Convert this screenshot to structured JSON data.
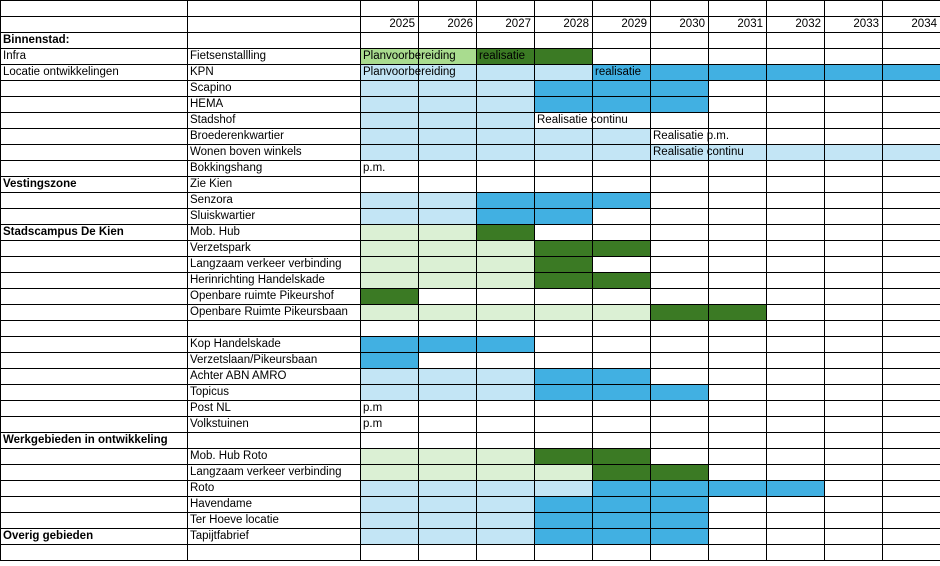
{
  "colors": {
    "P": "#a9dc8f",
    "p": "#dbf0d4",
    "D": "#3b7a24",
    "l": "#c3e5f5",
    "B": "#41b0e2"
  },
  "legend_codes": {
    "P": "planvoorbereiding (bright green)",
    "p": "planvoorbereiding (pale green)",
    "D": "realisatie (dark green)",
    "l": "planvoorbereiding (light blue)",
    "B": "realisatie (blue)"
  },
  "chart_data": {
    "type": "table",
    "years": [
      "2025",
      "2026",
      "2027",
      "2028",
      "2029",
      "2030",
      "2031",
      "2032",
      "2033",
      "2034"
    ],
    "rows": [
      {
        "a": "",
        "b": "",
        "fill": "..........",
        "labels": {}
      },
      {
        "a": "",
        "b": "",
        "fill": "..........",
        "labels": {},
        "years": true
      },
      {
        "a": "Binnenstad:",
        "b": "",
        "fill": "..........",
        "labels": {},
        "bold": true
      },
      {
        "a": "Infra",
        "b": "Fietsenstallling",
        "fill": "PPDD......",
        "labels": {
          "0": "Planvoorbereiding",
          "2": "realisatie"
        }
      },
      {
        "a": "Locatie ontwikkelingen",
        "b": "KPN",
        "fill": "llllBBBBBB",
        "labels": {
          "0": "Planvoorbereiding",
          "4": "realisatie"
        }
      },
      {
        "a": "",
        "b": "Scapino",
        "fill": "lllBBB....",
        "labels": {}
      },
      {
        "a": "",
        "b": "HEMA",
        "fill": "lllBBB....",
        "labels": {}
      },
      {
        "a": "",
        "b": "Stadshof",
        "fill": "lll.......",
        "labels": {
          "3": "Realisatie continu"
        }
      },
      {
        "a": "",
        "b": "Broederenkwartier",
        "fill": "lllll.....",
        "labels": {
          "5": "Realisatie p.m."
        }
      },
      {
        "a": "",
        "b": "Wonen boven winkels",
        "fill": "llllllllll",
        "labels": {
          "5": "Realisatie continu"
        }
      },
      {
        "a": "",
        "b": "Bokkingshang",
        "fill": "..........",
        "labels": {
          "0": "p.m."
        }
      },
      {
        "a": "Vestingszone",
        "b": "Zie Kien",
        "fill": "..........",
        "labels": {},
        "bold": true
      },
      {
        "a": "",
        "b": "Senzora",
        "fill": "llBBB.....",
        "labels": {}
      },
      {
        "a": "",
        "b": "Sluiskwartier",
        "fill": "llBB......",
        "labels": {}
      },
      {
        "a": "Stadscampus De Kien",
        "b": "Mob. Hub",
        "fill": "ppD.......",
        "labels": {},
        "bold": true
      },
      {
        "a": "",
        "b": "Verzetspark",
        "fill": "pppDD.....",
        "labels": {}
      },
      {
        "a": "",
        "b": "Langzaam verkeer verbinding",
        "fill": "pppD......",
        "labels": {}
      },
      {
        "a": "",
        "b": "Herinrichting Handelskade",
        "fill": "pppDD.....",
        "labels": {}
      },
      {
        "a": "",
        "b": "Openbare ruimte Pikeurshof",
        "fill": "D.........",
        "labels": {}
      },
      {
        "a": "",
        "b": "Openbare Ruimte Pikeursbaan",
        "fill": "pppppDD...",
        "labels": {}
      },
      {
        "a": "",
        "b": "",
        "fill": "..........",
        "labels": {}
      },
      {
        "a": "",
        "b": "Kop Handelskade",
        "fill": "BBB.......",
        "labels": {}
      },
      {
        "a": "",
        "b": "Verzetslaan/Pikeursbaan",
        "fill": "B.........",
        "labels": {}
      },
      {
        "a": "",
        "b": "Achter ABN AMRO",
        "fill": "lllBB.....",
        "labels": {}
      },
      {
        "a": "",
        "b": "Topicus",
        "fill": "lllBBB....",
        "labels": {}
      },
      {
        "a": "",
        "b": "Post NL",
        "fill": "..........",
        "labels": {
          "0": "p.m"
        }
      },
      {
        "a": "",
        "b": "Volkstuinen",
        "fill": "..........",
        "labels": {
          "0": "p.m"
        }
      },
      {
        "a": "Werkgebieden in ontwikkeling",
        "b": "",
        "fill": "..........",
        "labels": {},
        "bold": true
      },
      {
        "a": "",
        "b": "Mob.  Hub Roto",
        "fill": "pppDD.....",
        "labels": {}
      },
      {
        "a": "",
        "b": "Langzaam verkeer verbinding",
        "fill": "ppppDD....",
        "labels": {}
      },
      {
        "a": "",
        "b": "Roto",
        "fill": "llllBBBB..",
        "labels": {}
      },
      {
        "a": "",
        "b": "Havendame",
        "fill": "lllBBB....",
        "labels": {}
      },
      {
        "a": "",
        "b": "Ter Hoeve locatie",
        "fill": "lllBBB....",
        "labels": {}
      },
      {
        "a": "Overig gebieden",
        "b": "Tapijtfabrief",
        "fill": "lllBBB....",
        "labels": {},
        "bold": true
      },
      {
        "a": "",
        "b": "",
        "fill": "..........",
        "labels": {}
      }
    ]
  }
}
